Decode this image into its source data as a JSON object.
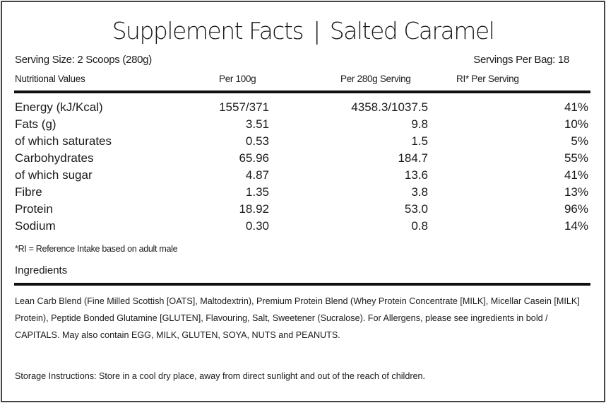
{
  "title": {
    "left": "Supplement Facts",
    "separator": "|",
    "right": "Salted Caramel"
  },
  "serving_size": "Serving Size: 2 Scoops (280g)",
  "servings_per_bag": "Servings Per Bag: 18",
  "table": {
    "headers": [
      "Nutritional Values",
      "Per 100g",
      "Per 280g Serving",
      "RI* Per Serving"
    ],
    "rows": [
      [
        "Energy (kJ/Kcal)",
        "1557/371",
        "4358.3/1037.5",
        "41%"
      ],
      [
        "Fats (g)",
        "3.51",
        "9.8",
        "10%"
      ],
      [
        "of which saturates",
        "0.53",
        "1.5",
        "5%"
      ],
      [
        "Carbohydrates",
        "65.96",
        "184.7",
        "55%"
      ],
      [
        "of which sugar",
        "4.87",
        "13.6",
        "41%"
      ],
      [
        "Fibre",
        "1.35",
        "3.8",
        "13%"
      ],
      [
        "Protein",
        "18.92",
        "53.0",
        "96%"
      ],
      [
        "Sodium",
        "0.30",
        "0.8",
        "14%"
      ]
    ]
  },
  "ri_note": "*RI = Reference Intake based on adult male",
  "ingredients": {
    "heading": "Ingredients",
    "text": "Lean Carb Blend (Fine Milled Scottish [OATS], Maltodextrin), Premium Protein Blend (Whey Protein Concentrate [MILK], Micellar Casein [MILK] Protein), Peptide Bonded Glutamine [GLUTEN], Flavouring, Salt, Sweetener (Sucralose). For Allergens, please see ingredients in bold / CAPITALS. May also contain EGG, MILK, GLUTEN, SOYA, NUTS and PEANUTS."
  },
  "storage": "Storage Instructions: Store in a cool dry place, away from direct sunlight and out of the reach of children."
}
